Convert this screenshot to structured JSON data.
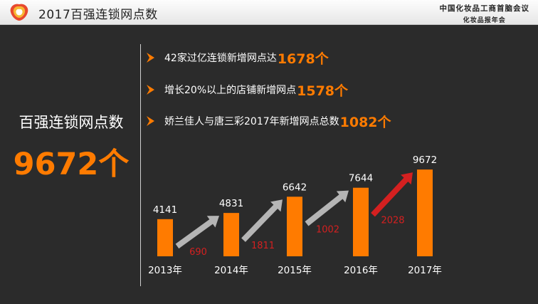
{
  "header": {
    "title": "2017百强连锁网点数",
    "org_line1": "中国化妆品工商首脑会议",
    "org_line2": "化妆品报年会"
  },
  "left": {
    "title": "百强连锁网点数",
    "big_value": "9672个"
  },
  "bullets": [
    {
      "text": "42家过亿连锁新增网点达",
      "highlight": "1678个"
    },
    {
      "text": "增长20%以上的店铺新增网点",
      "highlight": "1578个"
    },
    {
      "text": "娇兰佳人与唐三彩2017年新增网点总数",
      "highlight": "1082个"
    }
  ],
  "colors": {
    "accent": "#ff7b00",
    "background": "#2b2b2b",
    "arrow_gray": "#b5b5b5",
    "arrow_red": "#d42020",
    "increment_text": "#d42020"
  },
  "chart_data": {
    "type": "bar",
    "categories": [
      "2013年",
      "2014年",
      "2015年",
      "2016年",
      "2017年"
    ],
    "values": [
      4141,
      4831,
      6642,
      7644,
      9672
    ],
    "increments": [
      690,
      1811,
      1002,
      2028
    ],
    "increment_arrow_colors": [
      "#b5b5b5",
      "#b5b5b5",
      "#b5b5b5",
      "#d42020"
    ],
    "ylim": [
      0,
      10000
    ]
  }
}
